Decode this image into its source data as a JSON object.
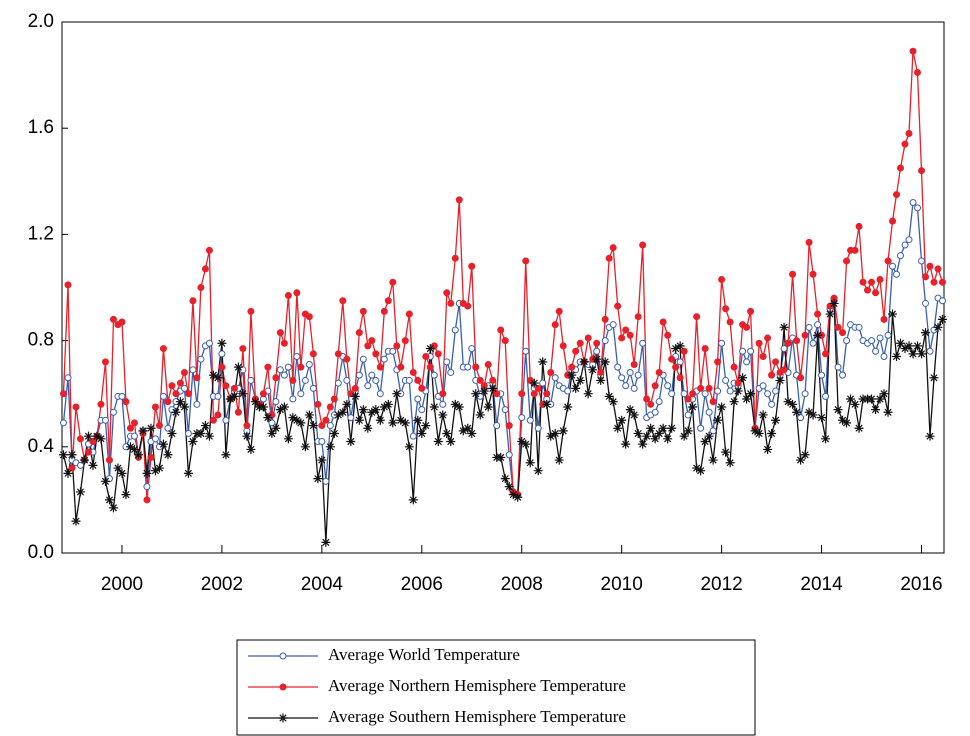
{
  "chart_data": {
    "type": "line",
    "x": [
      1998.83,
      1998.92,
      1999.0,
      1999.08,
      1999.17,
      1999.25,
      1999.33,
      1999.42,
      1999.5,
      1999.58,
      1999.67,
      1999.75,
      1999.83,
      1999.92,
      2000.0,
      2000.08,
      2000.17,
      2000.25,
      2000.33,
      2000.42,
      2000.5,
      2000.58,
      2000.67,
      2000.75,
      2000.83,
      2000.92,
      2001.0,
      2001.08,
      2001.17,
      2001.25,
      2001.33,
      2001.42,
      2001.5,
      2001.58,
      2001.67,
      2001.75,
      2001.83,
      2001.92,
      2002.0,
      2002.08,
      2002.17,
      2002.25,
      2002.33,
      2002.42,
      2002.5,
      2002.58,
      2002.67,
      2002.75,
      2002.83,
      2002.92,
      2003.0,
      2003.08,
      2003.17,
      2003.25,
      2003.33,
      2003.42,
      2003.5,
      2003.58,
      2003.67,
      2003.75,
      2003.83,
      2003.92,
      2004.0,
      2004.08,
      2004.17,
      2004.25,
      2004.33,
      2004.42,
      2004.5,
      2004.58,
      2004.67,
      2004.75,
      2004.83,
      2004.92,
      2005.0,
      2005.08,
      2005.17,
      2005.25,
      2005.33,
      2005.42,
      2005.5,
      2005.58,
      2005.67,
      2005.75,
      2005.83,
      2005.92,
      2006.0,
      2006.08,
      2006.17,
      2006.25,
      2006.33,
      2006.42,
      2006.5,
      2006.58,
      2006.67,
      2006.75,
      2006.83,
      2006.92,
      2007.0,
      2007.08,
      2007.17,
      2007.25,
      2007.33,
      2007.42,
      2007.5,
      2007.58,
      2007.67,
      2007.75,
      2007.83,
      2007.92,
      2008.0,
      2008.08,
      2008.17,
      2008.25,
      2008.33,
      2008.42,
      2008.5,
      2008.58,
      2008.67,
      2008.75,
      2008.83,
      2008.92,
      2009.0,
      2009.08,
      2009.17,
      2009.25,
      2009.33,
      2009.42,
      2009.5,
      2009.58,
      2009.67,
      2009.75,
      2009.83,
      2009.92,
      2010.0,
      2010.08,
      2010.17,
      2010.25,
      2010.33,
      2010.42,
      2010.5,
      2010.58,
      2010.67,
      2010.75,
      2010.83,
      2010.92,
      2011.0,
      2011.08,
      2011.17,
      2011.25,
      2011.33,
      2011.42,
      2011.5,
      2011.58,
      2011.67,
      2011.75,
      2011.83,
      2011.92,
      2012.0,
      2012.08,
      2012.17,
      2012.25,
      2012.33,
      2012.42,
      2012.5,
      2012.58,
      2012.67,
      2012.75,
      2012.83,
      2012.92,
      2013.0,
      2013.08,
      2013.17,
      2013.25,
      2013.33,
      2013.42,
      2013.5,
      2013.58,
      2013.67,
      2013.75,
      2013.83,
      2013.92,
      2014.0,
      2014.08,
      2014.17,
      2014.25,
      2014.33,
      2014.42,
      2014.5,
      2014.58,
      2014.67,
      2014.75,
      2014.83,
      2014.92,
      2015.0,
      2015.08,
      2015.17,
      2015.25,
      2015.33,
      2015.42,
      2015.5,
      2015.58,
      2015.67,
      2015.75,
      2015.83,
      2015.92,
      2016.0,
      2016.08,
      2016.17,
      2016.25,
      2016.33,
      2016.42
    ],
    "series": [
      {
        "name": "Average World Temperature",
        "color": "#3a5fb0",
        "marker": "circle-open",
        "values": [
          0.49,
          0.66,
          0.35,
          0.34,
          0.33,
          0.35,
          0.41,
          0.38,
          0.44,
          0.5,
          0.5,
          0.28,
          0.53,
          0.59,
          0.59,
          0.4,
          0.44,
          0.44,
          0.37,
          0.46,
          0.25,
          0.42,
          0.43,
          0.4,
          0.59,
          0.47,
          0.54,
          0.57,
          0.61,
          0.62,
          0.45,
          0.69,
          0.56,
          0.73,
          0.78,
          0.79,
          0.59,
          0.59,
          0.75,
          0.5,
          0.58,
          0.61,
          0.62,
          0.69,
          0.46,
          0.65,
          0.58,
          0.56,
          0.58,
          0.61,
          0.49,
          0.57,
          0.69,
          0.67,
          0.7,
          0.58,
          0.74,
          0.6,
          0.65,
          0.71,
          0.62,
          0.42,
          0.42,
          0.27,
          0.48,
          0.52,
          0.64,
          0.74,
          0.65,
          0.51,
          0.61,
          0.67,
          0.73,
          0.63,
          0.67,
          0.65,
          0.6,
          0.73,
          0.76,
          0.76,
          0.69,
          0.6,
          0.65,
          0.65,
          0.44,
          0.58,
          0.54,
          0.61,
          0.74,
          0.67,
          0.59,
          0.56,
          0.72,
          0.68,
          0.84,
          0.94,
          0.7,
          0.7,
          0.77,
          0.65,
          0.59,
          0.62,
          0.63,
          0.64,
          0.48,
          0.6,
          0.54,
          0.37,
          0.23,
          0.22,
          0.51,
          0.76,
          0.5,
          0.62,
          0.47,
          0.64,
          0.58,
          0.56,
          0.66,
          0.63,
          0.62,
          0.61,
          0.69,
          0.69,
          0.72,
          0.72,
          0.71,
          0.71,
          0.76,
          0.67,
          0.8,
          0.85,
          0.86,
          0.7,
          0.66,
          0.63,
          0.68,
          0.62,
          0.67,
          0.79,
          0.51,
          0.52,
          0.53,
          0.57,
          0.67,
          0.63,
          0.6,
          0.74,
          0.72,
          0.6,
          0.52,
          0.58,
          0.61,
          0.47,
          0.6,
          0.53,
          0.46,
          0.61,
          0.79,
          0.65,
          0.61,
          0.64,
          0.63,
          0.76,
          0.72,
          0.76,
          0.47,
          0.62,
          0.63,
          0.6,
          0.56,
          0.61,
          0.67,
          0.77,
          0.68,
          0.81,
          0.67,
          0.51,
          0.6,
          0.85,
          0.79,
          0.86,
          0.67,
          0.59,
          0.92,
          0.95,
          0.7,
          0.67,
          0.8,
          0.86,
          0.85,
          0.85,
          0.8,
          0.79,
          0.8,
          0.76,
          0.81,
          0.74,
          0.82,
          1.08,
          1.05,
          1.12,
          1.16,
          1.18,
          1.32,
          1.3,
          1.1,
          0.94,
          0.76,
          0.84,
          0.96,
          0.95
        ]
      },
      {
        "name": "Average Northern Hemisphere Temperature",
        "color": "#e8202a",
        "marker": "circle-filled",
        "values": [
          0.6,
          1.01,
          0.32,
          0.55,
          0.43,
          0.35,
          0.38,
          0.42,
          0.44,
          0.56,
          0.72,
          0.35,
          0.88,
          0.86,
          0.87,
          0.57,
          0.47,
          0.49,
          0.36,
          0.45,
          0.2,
          0.36,
          0.55,
          0.48,
          0.77,
          0.57,
          0.63,
          0.6,
          0.64,
          0.68,
          0.6,
          0.95,
          0.66,
          1.0,
          1.07,
          1.14,
          0.5,
          0.52,
          0.7,
          0.63,
          0.58,
          0.62,
          0.53,
          0.77,
          0.48,
          0.91,
          0.58,
          0.56,
          0.6,
          0.7,
          0.52,
          0.66,
          0.83,
          0.79,
          0.97,
          0.65,
          0.98,
          0.7,
          0.9,
          0.89,
          0.75,
          0.56,
          0.48,
          0.5,
          0.55,
          0.58,
          0.75,
          0.95,
          0.73,
          0.6,
          0.62,
          0.83,
          0.91,
          0.78,
          0.8,
          0.75,
          0.7,
          0.91,
          0.95,
          1.02,
          0.78,
          0.7,
          0.8,
          0.9,
          0.68,
          0.65,
          0.62,
          0.74,
          0.7,
          0.78,
          0.75,
          0.6,
          0.98,
          0.94,
          1.11,
          1.33,
          0.94,
          0.93,
          1.08,
          0.7,
          0.65,
          0.63,
          0.71,
          0.65,
          0.6,
          0.84,
          0.8,
          0.48,
          0.23,
          0.22,
          0.6,
          1.1,
          0.65,
          0.6,
          0.62,
          0.56,
          0.6,
          0.68,
          0.86,
          0.91,
          0.78,
          0.67,
          0.7,
          0.76,
          0.79,
          0.72,
          0.81,
          0.73,
          0.79,
          0.68,
          0.88,
          1.11,
          1.15,
          0.93,
          0.81,
          0.84,
          0.82,
          0.71,
          0.89,
          1.16,
          0.58,
          0.56,
          0.63,
          0.68,
          0.87,
          0.82,
          0.73,
          0.7,
          0.66,
          0.76,
          0.58,
          0.6,
          0.89,
          0.62,
          0.77,
          0.62,
          0.57,
          0.72,
          1.03,
          0.92,
          0.87,
          0.7,
          0.64,
          0.86,
          0.85,
          0.91,
          0.47,
          0.79,
          0.74,
          0.81,
          0.67,
          0.72,
          0.68,
          0.69,
          0.79,
          1.05,
          0.8,
          0.66,
          0.82,
          1.17,
          1.05,
          0.9,
          0.82,
          0.75,
          0.93,
          0.96,
          0.85,
          0.83,
          1.1,
          1.14,
          1.14,
          1.23,
          1.02,
          0.99,
          1.02,
          0.98,
          1.03,
          0.88,
          1.1,
          1.25,
          1.35,
          1.45,
          1.54,
          1.58,
          1.89,
          1.81,
          1.44,
          1.04,
          1.08,
          1.02,
          1.07,
          1.02
        ]
      },
      {
        "name": "Average Southern Hemisphere Temperature",
        "color": "#111111",
        "marker": "asterisk",
        "values": [
          0.37,
          0.3,
          0.37,
          0.12,
          0.23,
          0.35,
          0.44,
          0.33,
          0.44,
          0.43,
          0.27,
          0.2,
          0.17,
          0.32,
          0.3,
          0.22,
          0.4,
          0.39,
          0.37,
          0.46,
          0.3,
          0.47,
          0.31,
          0.32,
          0.41,
          0.37,
          0.45,
          0.53,
          0.57,
          0.55,
          0.3,
          0.42,
          0.45,
          0.45,
          0.48,
          0.44,
          0.67,
          0.66,
          0.79,
          0.37,
          0.58,
          0.59,
          0.7,
          0.6,
          0.44,
          0.39,
          0.57,
          0.55,
          0.55,
          0.51,
          0.45,
          0.47,
          0.54,
          0.55,
          0.43,
          0.51,
          0.5,
          0.49,
          0.4,
          0.52,
          0.48,
          0.28,
          0.35,
          0.04,
          0.4,
          0.45,
          0.52,
          0.53,
          0.56,
          0.42,
          0.59,
          0.5,
          0.54,
          0.47,
          0.53,
          0.54,
          0.5,
          0.55,
          0.56,
          0.49,
          0.6,
          0.5,
          0.49,
          0.4,
          0.2,
          0.5,
          0.45,
          0.48,
          0.77,
          0.55,
          0.42,
          0.52,
          0.45,
          0.42,
          0.56,
          0.55,
          0.46,
          0.47,
          0.45,
          0.6,
          0.52,
          0.61,
          0.55,
          0.62,
          0.36,
          0.36,
          0.28,
          0.25,
          0.22,
          0.21,
          0.42,
          0.41,
          0.34,
          0.64,
          0.31,
          0.72,
          0.56,
          0.44,
          0.45,
          0.35,
          0.46,
          0.55,
          0.67,
          0.62,
          0.65,
          0.72,
          0.6,
          0.69,
          0.73,
          0.65,
          0.72,
          0.59,
          0.57,
          0.47,
          0.5,
          0.41,
          0.54,
          0.52,
          0.45,
          0.41,
          0.44,
          0.47,
          0.43,
          0.45,
          0.47,
          0.43,
          0.47,
          0.77,
          0.78,
          0.44,
          0.46,
          0.55,
          0.32,
          0.31,
          0.42,
          0.44,
          0.35,
          0.5,
          0.55,
          0.38,
          0.34,
          0.57,
          0.61,
          0.66,
          0.58,
          0.6,
          0.46,
          0.45,
          0.52,
          0.39,
          0.45,
          0.5,
          0.65,
          0.85,
          0.57,
          0.56,
          0.53,
          0.35,
          0.37,
          0.53,
          0.52,
          0.82,
          0.51,
          0.43,
          0.9,
          0.94,
          0.54,
          0.5,
          0.49,
          0.58,
          0.56,
          0.47,
          0.58,
          0.58,
          0.58,
          0.54,
          0.58,
          0.6,
          0.53,
          0.9,
          0.74,
          0.79,
          0.77,
          0.78,
          0.75,
          0.78,
          0.75,
          0.83,
          0.44,
          0.66,
          0.85,
          0.88
        ]
      }
    ],
    "xlim": [
      1998.8,
      2016.45
    ],
    "xticks": [
      2000,
      2002,
      2004,
      2006,
      2008,
      2010,
      2012,
      2014,
      2016
    ],
    "ylim": [
      0,
      2
    ],
    "yticks": [
      {
        "value": 0,
        "label": "0.0"
      },
      0.4,
      0.8,
      1.2,
      1.6,
      {
        "value": 2,
        "label": "2.0"
      }
    ],
    "grid": false,
    "legend": "bottom"
  }
}
